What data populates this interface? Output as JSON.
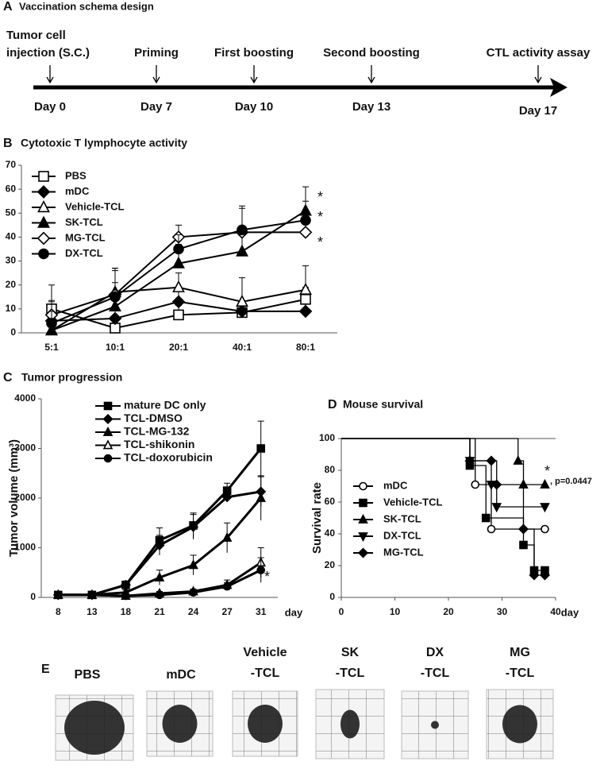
{
  "schema": {
    "panel": "A",
    "title": "Vaccination schema design",
    "events": [
      {
        "label": [
          "Tumor cell",
          "injection (S.C.)"
        ],
        "day": "Day 0"
      },
      {
        "label": [
          "Priming"
        ],
        "day": "Day 7"
      },
      {
        "label": [
          "First boosting"
        ],
        "day": "Day 10"
      },
      {
        "label": [
          "Second boosting"
        ],
        "day": "Day 13"
      },
      {
        "label": [
          "CTL activity assay"
        ],
        "day": "Day 17"
      }
    ]
  },
  "chart_data": [
    {
      "type": "line",
      "panel": "B",
      "title": "Cytotoxic T lymphocyte activity",
      "categories": [
        "5:1",
        "10:1",
        "20:1",
        "40:1",
        "80:1"
      ],
      "ylim": [
        0,
        70
      ],
      "yticks": [
        0,
        10,
        20,
        30,
        40,
        50,
        60,
        70
      ],
      "series": [
        {
          "name": "PBS",
          "color": "#000000",
          "marker": "square",
          "filled": false,
          "values": [
            10,
            2,
            7.5,
            8.5,
            14
          ],
          "errors": [
            10,
            8,
            4,
            4,
            5
          ]
        },
        {
          "name": "mDC",
          "color": "#000000",
          "marker": "diamond",
          "filled": true,
          "values": [
            5,
            6,
            13,
            9,
            9
          ],
          "errors": [
            8,
            5,
            5,
            3,
            3
          ]
        },
        {
          "name": "Vehicle-TCL",
          "color": "#000000",
          "marker": "triangle",
          "filled": false,
          "values": [
            1,
            17,
            19,
            13,
            18
          ],
          "errors": [
            5,
            10,
            6,
            10,
            10
          ]
        },
        {
          "name": "SK-TCL",
          "color": "#000000",
          "marker": "triangle",
          "filled": true,
          "values": [
            1,
            11,
            29,
            34,
            51
          ],
          "errors": [
            4,
            10,
            8,
            8,
            10
          ]
        },
        {
          "name": "MG-TCL",
          "color": "#000000",
          "marker": "diamond",
          "filled": false,
          "values": [
            7.5,
            16,
            40,
            42,
            42
          ],
          "errors": [
            6,
            10,
            5,
            10,
            5
          ]
        },
        {
          "name": "DX-TCL",
          "color": "#000000",
          "marker": "circle",
          "filled": true,
          "values": [
            4,
            15,
            35,
            43,
            47
          ],
          "errors": [
            5,
            12,
            6,
            10,
            8
          ]
        }
      ],
      "annotations": [
        "*",
        "*",
        "*"
      ]
    },
    {
      "type": "line",
      "panel": "C",
      "title": "Tumor progression",
      "ylabel": "Tumor volume (mm³)",
      "xlabel": "day",
      "categories": [
        "8",
        "13",
        "18",
        "21",
        "24",
        "27",
        "31"
      ],
      "ylim": [
        0,
        4000
      ],
      "yticks": [
        0,
        1000,
        2000,
        3000,
        4000
      ],
      "series": [
        {
          "name": "mature DC only",
          "color": "#000000",
          "marker": "square",
          "filled": true,
          "values": [
            50,
            50,
            250,
            1150,
            1450,
            2150,
            3000
          ],
          "errors": [
            30,
            30,
            80,
            250,
            250,
            150,
            550
          ]
        },
        {
          "name": "TCL-DMSO",
          "color": "#000000",
          "marker": "diamond",
          "filled": true,
          "values": [
            50,
            50,
            250,
            1050,
            1420,
            2020,
            2130
          ],
          "errors": [
            30,
            30,
            80,
            200,
            250,
            100,
            300
          ]
        },
        {
          "name": "TCL-MG-132",
          "color": "#000000",
          "marker": "triangle",
          "filled": true,
          "values": [
            50,
            50,
            100,
            400,
            650,
            1200,
            2000
          ],
          "errors": [
            30,
            30,
            50,
            150,
            200,
            300,
            450
          ]
        },
        {
          "name": "TCL-shikonin",
          "color": "#000000",
          "marker": "triangle",
          "filled": false,
          "values": [
            50,
            50,
            30,
            80,
            120,
            250,
            700
          ],
          "errors": [
            30,
            30,
            20,
            40,
            50,
            100,
            300
          ]
        },
        {
          "name": "TCL-doxorubicin",
          "color": "#000000",
          "marker": "circle",
          "filled": true,
          "values": [
            50,
            50,
            30,
            50,
            100,
            220,
            550
          ],
          "errors": [
            30,
            30,
            20,
            30,
            50,
            80,
            250
          ]
        }
      ],
      "annotations": [
        "*"
      ]
    },
    {
      "type": "step",
      "panel": "D",
      "title": "Mouse survival",
      "ylabel": "Survival rate",
      "xlabel": "day",
      "xlim": [
        0,
        40
      ],
      "xticks": [
        0,
        10,
        20,
        30,
        40
      ],
      "ylim": [
        0,
        100
      ],
      "yticks": [
        0,
        20,
        40,
        60,
        80,
        100
      ],
      "series": [
        {
          "name": "mDC",
          "color": "#000000",
          "marker": "circle",
          "filled": false,
          "x": [
            0,
            25,
            28,
            38
          ],
          "values": [
            100,
            71,
            43,
            43
          ]
        },
        {
          "name": "Vehicle-TCL",
          "color": "#000000",
          "marker": "square",
          "filled": true,
          "x": [
            0,
            24,
            27,
            34,
            36,
            38
          ],
          "values": [
            100,
            83,
            50,
            33,
            17,
            17
          ]
        },
        {
          "name": "SK-TCL",
          "color": "#000000",
          "marker": "triangle",
          "filled": true,
          "x": [
            0,
            33,
            34,
            38
          ],
          "values": [
            100,
            86,
            71,
            71
          ]
        },
        {
          "name": "DX-TCL",
          "color": "#000000",
          "marker": "tridown",
          "filled": true,
          "x": [
            0,
            24,
            28,
            29,
            38
          ],
          "values": [
            100,
            86,
            71,
            57,
            57
          ]
        },
        {
          "name": "MG-TCL",
          "color": "#000000",
          "marker": "diamond",
          "filled": true,
          "x": [
            0,
            24,
            28,
            29,
            34,
            36,
            38
          ],
          "values": [
            100,
            86,
            86,
            71,
            43,
            14,
            14
          ]
        }
      ],
      "annotations": [
        "*",
        ", p=0.0447"
      ]
    }
  ],
  "photos": {
    "panel": "E",
    "items": [
      {
        "label": [
          "PBS"
        ]
      },
      {
        "label": [
          "mDC"
        ]
      },
      {
        "label": [
          "Vehicle",
          "-TCL"
        ]
      },
      {
        "label": [
          "SK",
          "-TCL"
        ]
      },
      {
        "label": [
          "DX",
          "-TCL"
        ]
      },
      {
        "label": [
          "MG",
          "-TCL"
        ]
      }
    ]
  }
}
